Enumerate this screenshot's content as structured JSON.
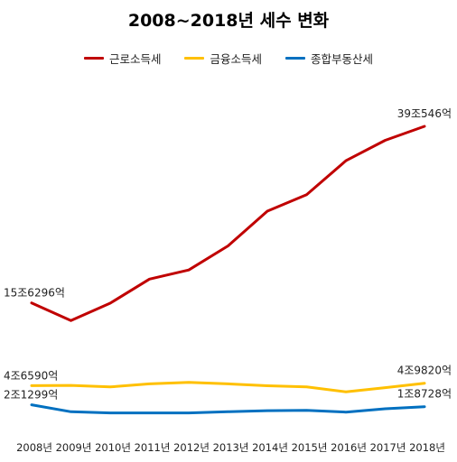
{
  "chart_data": {
    "type": "line",
    "title": "2008~2018년 세수 변화",
    "categories": [
      "2008년",
      "2009년",
      "2010년",
      "2011년",
      "2012년",
      "2013년",
      "2014년",
      "2015년",
      "2016년",
      "2017년",
      "2018년"
    ],
    "xlabel": "",
    "ylabel": "",
    "grid": false,
    "legend_position": "top",
    "series": [
      {
        "name": "근로소득세",
        "color": "#C00000",
        "values": [
          15.6296,
          13.3,
          15.6,
          18.8,
          20.0,
          23.2,
          27.8,
          30.0,
          34.5,
          37.2,
          39.0546
        ],
        "start_label": "15조6296억",
        "end_label": "39조546억"
      },
      {
        "name": "금융소득세",
        "color": "#FFC000",
        "values": [
          4.659,
          4.7,
          4.5,
          4.9,
          5.1,
          4.9,
          4.65,
          4.5,
          3.85,
          4.4,
          4.982
        ],
        "start_label": "4조6590억",
        "end_label": "4조9820억"
      },
      {
        "name": "종합부동산세",
        "color": "#0070C0",
        "values": [
          2.1299,
          1.2,
          1.05,
          1.05,
          1.05,
          1.2,
          1.35,
          1.4,
          1.15,
          1.6,
          1.8728
        ],
        "start_label": "2조1299억",
        "end_label": "1조8728억"
      }
    ]
  }
}
